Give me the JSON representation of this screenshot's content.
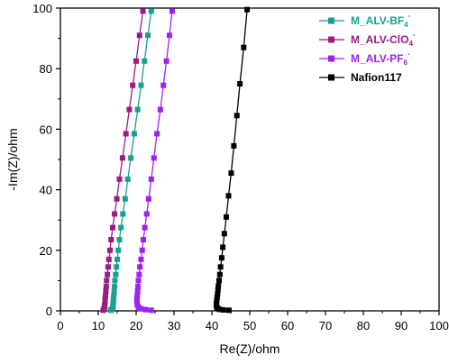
{
  "chart_data": {
    "type": "scatter",
    "xlabel": "Re(Z)/ohm",
    "ylabel": "-Im(Z)/ohm",
    "xlim": [
      0,
      100
    ],
    "ylim": [
      0,
      100
    ],
    "xticks": [
      0,
      10,
      20,
      30,
      40,
      50,
      60,
      70,
      80,
      90,
      100
    ],
    "yticks": [
      0,
      20,
      40,
      60,
      80,
      100
    ],
    "grid": false,
    "legend_position": "top-right",
    "series": [
      {
        "name": "M_ALV-BF",
        "name_sub": "4",
        "name_sup": "-",
        "color": "#1a9e8f",
        "marker": "square",
        "points": [
          [
            13.3,
            0.2
          ],
          [
            13.6,
            0.5
          ],
          [
            13.8,
            1.0
          ],
          [
            13.9,
            1.5
          ],
          [
            13.9,
            2.0
          ],
          [
            14.0,
            3.0
          ],
          [
            14.0,
            4.0
          ],
          [
            14.1,
            5.0
          ],
          [
            14.2,
            6.5
          ],
          [
            14.3,
            8.0
          ],
          [
            14.4,
            10.0
          ],
          [
            14.6,
            12.0
          ],
          [
            14.8,
            14.5
          ],
          [
            15.0,
            17.0
          ],
          [
            15.3,
            20.0
          ],
          [
            15.6,
            23.5
          ],
          [
            16.0,
            27.5
          ],
          [
            16.5,
            32.0
          ],
          [
            17.1,
            37.0
          ],
          [
            17.8,
            43.5
          ],
          [
            18.6,
            50.5
          ],
          [
            19.5,
            58.5
          ],
          [
            20.4,
            66.5
          ],
          [
            21.3,
            74.5
          ],
          [
            22.2,
            82.5
          ],
          [
            23.1,
            91.0
          ],
          [
            24.0,
            99.0
          ]
        ]
      },
      {
        "name": "M_ALV-ClO",
        "name_sub": "4",
        "name_sup": "-",
        "color": "#9b1a86",
        "marker": "square",
        "points": [
          [
            11.3,
            0.2
          ],
          [
            11.5,
            0.5
          ],
          [
            11.6,
            1.0
          ],
          [
            11.7,
            1.5
          ],
          [
            11.7,
            2.0
          ],
          [
            11.8,
            3.0
          ],
          [
            11.8,
            4.0
          ],
          [
            11.9,
            5.0
          ],
          [
            12.0,
            6.5
          ],
          [
            12.1,
            8.0
          ],
          [
            12.2,
            10.0
          ],
          [
            12.4,
            12.0
          ],
          [
            12.6,
            14.5
          ],
          [
            12.8,
            17.0
          ],
          [
            13.1,
            20.0
          ],
          [
            13.4,
            23.5
          ],
          [
            13.8,
            27.5
          ],
          [
            14.3,
            32.0
          ],
          [
            14.9,
            37.0
          ],
          [
            15.6,
            43.5
          ],
          [
            16.4,
            50.5
          ],
          [
            17.3,
            58.5
          ],
          [
            18.2,
            66.5
          ],
          [
            19.1,
            74.5
          ],
          [
            20.0,
            82.5
          ],
          [
            20.9,
            91.0
          ],
          [
            21.8,
            99.0
          ]
        ]
      },
      {
        "name": "M_ALV-PF",
        "name_sub": "6",
        "name_sup": "-",
        "color": "#a020f0",
        "marker": "square",
        "points": [
          [
            24.0,
            0.2
          ],
          [
            22.5,
            0.4
          ],
          [
            21.3,
            0.7
          ],
          [
            20.6,
            1.2
          ],
          [
            20.3,
            2.0
          ],
          [
            20.2,
            3.0
          ],
          [
            20.2,
            4.0
          ],
          [
            20.3,
            5.0
          ],
          [
            20.4,
            6.5
          ],
          [
            20.5,
            8.0
          ],
          [
            20.6,
            10.0
          ],
          [
            20.8,
            12.0
          ],
          [
            21.0,
            14.5
          ],
          [
            21.3,
            17.0
          ],
          [
            21.6,
            20.0
          ],
          [
            21.9,
            23.5
          ],
          [
            22.3,
            27.5
          ],
          [
            22.8,
            32.0
          ],
          [
            23.3,
            37.0
          ],
          [
            24.0,
            43.5
          ],
          [
            24.7,
            50.5
          ],
          [
            25.5,
            58.5
          ],
          [
            26.4,
            66.5
          ],
          [
            27.2,
            74.5
          ],
          [
            28.0,
            82.5
          ],
          [
            28.8,
            91.0
          ],
          [
            29.5,
            99.0
          ]
        ]
      },
      {
        "name": "Nafion117",
        "name_sub": "",
        "name_sup": "",
        "color": "#000000",
        "marker": "square",
        "points": [
          [
            44.5,
            0.2
          ],
          [
            43.0,
            0.3
          ],
          [
            42.0,
            0.5
          ],
          [
            41.5,
            0.8
          ],
          [
            41.3,
            1.2
          ],
          [
            41.2,
            1.8
          ],
          [
            41.2,
            2.5
          ],
          [
            41.3,
            3.5
          ],
          [
            41.4,
            4.5
          ],
          [
            41.5,
            5.5
          ],
          [
            41.6,
            6.8
          ],
          [
            41.7,
            8.2
          ],
          [
            41.9,
            10.0
          ],
          [
            42.1,
            12.0
          ],
          [
            42.3,
            14.5
          ],
          [
            42.6,
            17.5
          ],
          [
            42.9,
            21.0
          ],
          [
            43.3,
            25.5
          ],
          [
            43.8,
            31.0
          ],
          [
            44.4,
            38.0
          ],
          [
            45.1,
            45.5
          ],
          [
            45.8,
            54.5
          ],
          [
            46.6,
            64.5
          ],
          [
            47.4,
            75.0
          ],
          [
            48.4,
            87.0
          ],
          [
            49.3,
            99.5
          ]
        ]
      }
    ]
  }
}
